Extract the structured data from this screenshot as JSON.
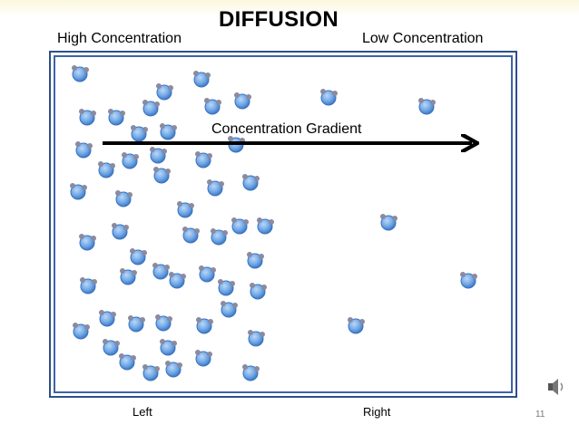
{
  "slide": {
    "title": "DIFFUSION",
    "high_label": "High Concentration",
    "low_label": "Low Concentration",
    "gradient_label": "Concentration Gradient",
    "left_label": "Left",
    "right_label": "Right",
    "page_number": "11"
  },
  "colors": {
    "molecule_fill": "#6fa8e6",
    "molecule_stroke": "#3b72c0",
    "atom_fill": "#8a8aa0",
    "frame": "#2f4f8a",
    "arrow": "#000000"
  },
  "icons": {
    "speaker": "speaker-icon"
  }
}
